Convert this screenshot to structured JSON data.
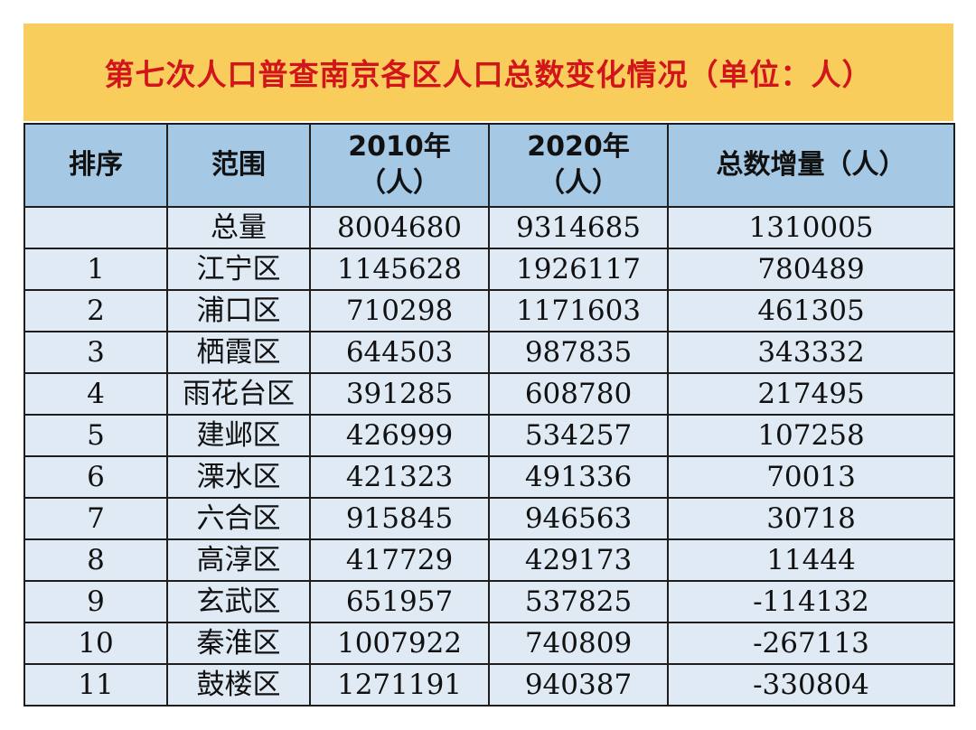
{
  "title": "第七次人口普查南京各区人口总数变化情况（单位：人）",
  "header": {
    "rank": "排序",
    "scope": "范围",
    "y2010_line1": "2010年",
    "y2010_line2": "（人）",
    "y2020_line1": "2020年",
    "y2020_line2": "（人）",
    "increase": "总数增量（人）"
  },
  "total_row": {
    "rank": "",
    "scope": "总量",
    "y2010": "8004680",
    "y2020": "9314685",
    "increase": "1310005"
  },
  "rows": [
    {
      "rank": "1",
      "scope": "江宁区",
      "y2010": "1145628",
      "y2020": "1926117",
      "increase": "780489"
    },
    {
      "rank": "2",
      "scope": "浦口区",
      "y2010": "710298",
      "y2020": "1171603",
      "increase": "461305"
    },
    {
      "rank": "3",
      "scope": "栖霞区",
      "y2010": "644503",
      "y2020": "987835",
      "increase": "343332"
    },
    {
      "rank": "4",
      "scope": "雨花台区",
      "y2010": "391285",
      "y2020": "608780",
      "increase": "217495"
    },
    {
      "rank": "5",
      "scope": "建邺区",
      "y2010": "426999",
      "y2020": "534257",
      "increase": "107258"
    },
    {
      "rank": "6",
      "scope": "溧水区",
      "y2010": "421323",
      "y2020": "491336",
      "increase": "70013"
    },
    {
      "rank": "7",
      "scope": "六合区",
      "y2010": "915845",
      "y2020": "946563",
      "increase": "30718"
    },
    {
      "rank": "8",
      "scope": "高淳区",
      "y2010": "417729",
      "y2020": "429173",
      "increase": "11444"
    },
    {
      "rank": "9",
      "scope": "玄武区",
      "y2010": "651957",
      "y2020": "537825",
      "increase": "-114132"
    },
    {
      "rank": "10",
      "scope": "秦淮区",
      "y2010": "1007922",
      "y2020": "740809",
      "increase": "-267113"
    },
    {
      "rank": "11",
      "scope": "鼓楼区",
      "y2010": "1271191",
      "y2020": "940387",
      "increase": "-330804"
    }
  ],
  "colors": {
    "title_bg": "#f9cd5c",
    "title_text": "#d2141b",
    "header_bg": "#a5c8e5",
    "row_bg": "#dfeaf5",
    "border": "#1e1e1e"
  }
}
